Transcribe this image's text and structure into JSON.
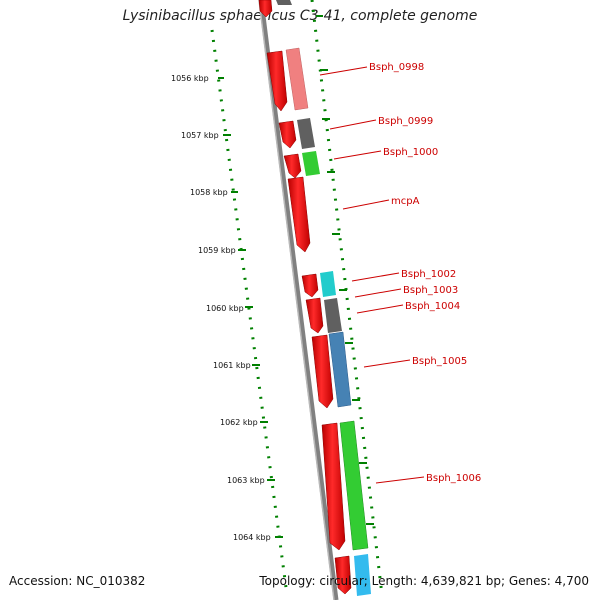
{
  "title": "Lysinibacillus sphaericus C3-41, complete genome",
  "footer": {
    "accession": "Accession: NC_010382",
    "summary": "Topology: circular; Length: 4,639,821 bp; Genes: 4,700"
  },
  "ticks": [
    "1056 kbp",
    "1057 kbp",
    "1058 kbp",
    "1059 kbp",
    "1060 kbp",
    "1061 kbp",
    "1062 kbp",
    "1063 kbp",
    "1064 kbp"
  ],
  "gene_labels": [
    "Bsph_0998",
    "Bsph_0999",
    "Bsph_1000",
    "mcpA",
    "Bsph_1002",
    "Bsph_1003",
    "Bsph_1004",
    "Bsph_1005",
    "Bsph_1006"
  ],
  "colors": {
    "backbone": "#808080",
    "gene_red": "#ff0000",
    "tick_green": "#008000",
    "label_red": "#cc0000",
    "pink": "#f08080",
    "dark_gray": "#606060",
    "green": "#33cc33",
    "cyan": "#22cccc",
    "steel_blue": "#4682b4",
    "light_blue": "#33bbee"
  }
}
